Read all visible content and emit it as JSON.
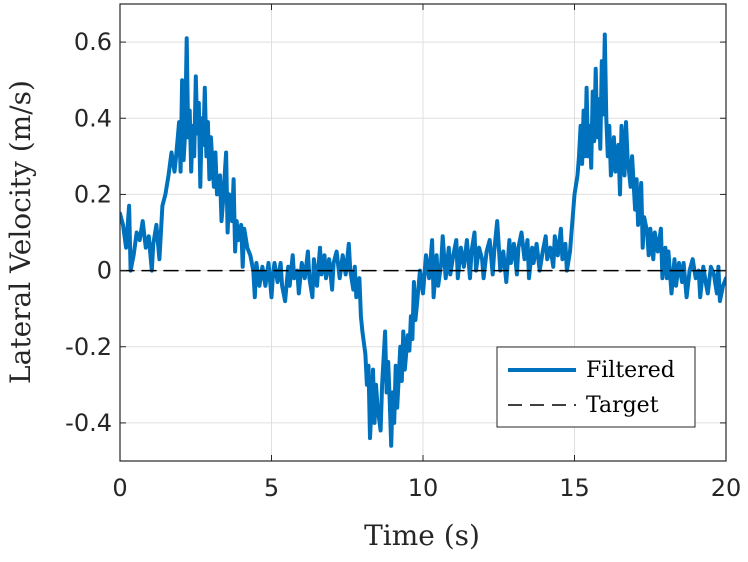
{
  "chart_data": {
    "type": "line",
    "xlabel": "Time (s)",
    "ylabel": "Lateral Velocity (m/s)",
    "xlim": [
      0,
      20
    ],
    "ylim": [
      -0.5,
      0.7
    ],
    "xticks": [
      0,
      5,
      10,
      15,
      20
    ],
    "xtick_labels": [
      "0",
      "5",
      "10",
      "15",
      "20"
    ],
    "yticks": [
      -0.4,
      -0.2,
      0,
      0.2,
      0.4,
      0.6
    ],
    "ytick_labels": [
      "-0.4",
      "-0.2",
      "0",
      "0.2",
      "0.4",
      "0.6"
    ],
    "grid": true,
    "legend_position": "bottom-right",
    "series": [
      {
        "name": "Filtered",
        "color": "#0072BD",
        "style": "solid",
        "points": [
          [
            0.0,
            0.15
          ],
          [
            0.1,
            0.12
          ],
          [
            0.2,
            0.06
          ],
          [
            0.3,
            0.17
          ],
          [
            0.35,
            0.0
          ],
          [
            0.45,
            0.04
          ],
          [
            0.55,
            0.1
          ],
          [
            0.65,
            0.08
          ],
          [
            0.75,
            0.13
          ],
          [
            0.85,
            0.06
          ],
          [
            0.95,
            0.09
          ],
          [
            1.05,
            0.0
          ],
          [
            1.1,
            0.07
          ],
          [
            1.2,
            0.12
          ],
          [
            1.3,
            0.03
          ],
          [
            1.4,
            0.17
          ],
          [
            1.5,
            0.2
          ],
          [
            1.6,
            0.25
          ],
          [
            1.7,
            0.31
          ],
          [
            1.8,
            0.26
          ],
          [
            1.85,
            0.3
          ],
          [
            1.95,
            0.39
          ],
          [
            2.0,
            0.26
          ],
          [
            2.05,
            0.5
          ],
          [
            2.1,
            0.29
          ],
          [
            2.15,
            0.36
          ],
          [
            2.2,
            0.61
          ],
          [
            2.25,
            0.35
          ],
          [
            2.3,
            0.42
          ],
          [
            2.35,
            0.26
          ],
          [
            2.4,
            0.38
          ],
          [
            2.45,
            0.3
          ],
          [
            2.5,
            0.51
          ],
          [
            2.55,
            0.36
          ],
          [
            2.6,
            0.44
          ],
          [
            2.65,
            0.22
          ],
          [
            2.7,
            0.4
          ],
          [
            2.75,
            0.33
          ],
          [
            2.8,
            0.48
          ],
          [
            2.85,
            0.3
          ],
          [
            2.9,
            0.39
          ],
          [
            2.95,
            0.24
          ],
          [
            3.0,
            0.35
          ],
          [
            3.1,
            0.22
          ],
          [
            3.15,
            0.31
          ],
          [
            3.2,
            0.2
          ],
          [
            3.3,
            0.25
          ],
          [
            3.35,
            0.13
          ],
          [
            3.4,
            0.18
          ],
          [
            3.5,
            0.31
          ],
          [
            3.55,
            0.1
          ],
          [
            3.6,
            0.2
          ],
          [
            3.7,
            0.13
          ],
          [
            3.75,
            0.24
          ],
          [
            3.8,
            0.05
          ],
          [
            3.85,
            0.13
          ],
          [
            3.9,
            0.08
          ],
          [
            4.0,
            0.12
          ],
          [
            4.05,
            0.01
          ],
          [
            4.1,
            0.11
          ],
          [
            4.2,
            0.06
          ],
          [
            4.3,
            0.04
          ],
          [
            4.4,
            0.0
          ],
          [
            4.45,
            -0.07
          ],
          [
            4.5,
            0.02
          ],
          [
            4.6,
            -0.04
          ],
          [
            4.7,
            0.01
          ],
          [
            4.8,
            -0.04
          ],
          [
            4.9,
            0.02
          ],
          [
            5.0,
            -0.07
          ],
          [
            5.05,
            -0.01
          ],
          [
            5.1,
            0.02
          ],
          [
            5.2,
            -0.03
          ],
          [
            5.3,
            0.02
          ],
          [
            5.35,
            -0.04
          ],
          [
            5.45,
            -0.08
          ],
          [
            5.55,
            0.01
          ],
          [
            5.6,
            -0.04
          ],
          [
            5.7,
            0.04
          ],
          [
            5.75,
            -0.02
          ],
          [
            5.85,
            0.0
          ],
          [
            5.9,
            -0.06
          ],
          [
            6.0,
            0.02
          ],
          [
            6.1,
            -0.02
          ],
          [
            6.2,
            0.05
          ],
          [
            6.25,
            -0.02
          ],
          [
            6.35,
            -0.07
          ],
          [
            6.4,
            0.03
          ],
          [
            6.5,
            -0.04
          ],
          [
            6.6,
            0.06
          ],
          [
            6.65,
            -0.01
          ],
          [
            6.75,
            0.04
          ],
          [
            6.8,
            -0.02
          ],
          [
            6.9,
            0.03
          ],
          [
            7.0,
            -0.05
          ],
          [
            7.05,
            0.02
          ],
          [
            7.15,
            0.05
          ],
          [
            7.25,
            -0.02
          ],
          [
            7.35,
            0.04
          ],
          [
            7.45,
            -0.01
          ],
          [
            7.55,
            0.07
          ],
          [
            7.6,
            0.0
          ],
          [
            7.7,
            -0.05
          ],
          [
            7.75,
            0.01
          ],
          [
            7.8,
            -0.07
          ],
          [
            7.9,
            -0.02
          ],
          [
            7.95,
            -0.12
          ],
          [
            8.0,
            -0.16
          ],
          [
            8.1,
            -0.22
          ],
          [
            8.15,
            -0.3
          ],
          [
            8.2,
            -0.25
          ],
          [
            8.25,
            -0.44
          ],
          [
            8.3,
            -0.36
          ],
          [
            8.35,
            -0.26
          ],
          [
            8.4,
            -0.4
          ],
          [
            8.45,
            -0.3
          ],
          [
            8.5,
            -0.36
          ],
          [
            8.6,
            -0.42
          ],
          [
            8.65,
            -0.3
          ],
          [
            8.75,
            -0.16
          ],
          [
            8.8,
            -0.32
          ],
          [
            8.85,
            -0.24
          ],
          [
            8.9,
            -0.34
          ],
          [
            8.95,
            -0.46
          ],
          [
            9.0,
            -0.32
          ],
          [
            9.05,
            -0.4
          ],
          [
            9.1,
            -0.25
          ],
          [
            9.15,
            -0.36
          ],
          [
            9.25,
            -0.2
          ],
          [
            9.3,
            -0.29
          ],
          [
            9.35,
            -0.16
          ],
          [
            9.4,
            -0.26
          ],
          [
            9.5,
            -0.17
          ],
          [
            9.55,
            -0.21
          ],
          [
            9.6,
            -0.12
          ],
          [
            9.65,
            -0.18
          ],
          [
            9.7,
            -0.03
          ],
          [
            9.75,
            -0.13
          ],
          [
            9.8,
            -0.09
          ],
          [
            9.9,
            0.0
          ],
          [
            10.0,
            -0.06
          ],
          [
            10.1,
            0.04
          ],
          [
            10.2,
            -0.02
          ],
          [
            10.3,
            0.08
          ],
          [
            10.35,
            -0.07
          ],
          [
            10.45,
            0.04
          ],
          [
            10.5,
            -0.04
          ],
          [
            10.6,
            0.02
          ],
          [
            10.65,
            0.09
          ],
          [
            10.75,
            -0.02
          ],
          [
            10.85,
            0.06
          ],
          [
            10.9,
            -0.01
          ],
          [
            11.0,
            0.04
          ],
          [
            11.1,
            0.08
          ],
          [
            11.15,
            -0.02
          ],
          [
            11.25,
            0.06
          ],
          [
            11.35,
            0.01
          ],
          [
            11.45,
            0.08
          ],
          [
            11.55,
            -0.02
          ],
          [
            11.6,
            0.05
          ],
          [
            11.7,
            0.1
          ],
          [
            11.75,
            0.0
          ],
          [
            11.85,
            0.06
          ],
          [
            11.95,
            0.03
          ],
          [
            12.0,
            -0.02
          ],
          [
            12.1,
            0.05
          ],
          [
            12.2,
            0.08
          ],
          [
            12.3,
            -0.01
          ],
          [
            12.35,
            0.05
          ],
          [
            12.45,
            0.13
          ],
          [
            12.55,
            0.0
          ],
          [
            12.65,
            0.05
          ],
          [
            12.75,
            -0.03
          ],
          [
            12.85,
            0.08
          ],
          [
            12.9,
            0.02
          ],
          [
            13.0,
            0.07
          ],
          [
            13.1,
            -0.01
          ],
          [
            13.15,
            0.06
          ],
          [
            13.25,
            0.1
          ],
          [
            13.35,
            0.03
          ],
          [
            13.45,
            0.08
          ],
          [
            13.5,
            -0.02
          ],
          [
            13.6,
            0.06
          ],
          [
            13.65,
            0.02
          ],
          [
            13.75,
            0.07
          ],
          [
            13.85,
            0.0
          ],
          [
            13.95,
            0.05
          ],
          [
            14.05,
            0.09
          ],
          [
            14.1,
            0.03
          ],
          [
            14.2,
            0.06
          ],
          [
            14.3,
            0.01
          ],
          [
            14.35,
            0.09
          ],
          [
            14.45,
            0.04
          ],
          [
            14.55,
            0.11
          ],
          [
            14.6,
            0.03
          ],
          [
            14.7,
            0.07
          ],
          [
            14.75,
            0.0
          ],
          [
            14.85,
            0.05
          ],
          [
            14.95,
            0.15
          ],
          [
            15.0,
            0.2
          ],
          [
            15.1,
            0.25
          ],
          [
            15.15,
            0.3
          ],
          [
            15.2,
            0.38
          ],
          [
            15.25,
            0.28
          ],
          [
            15.3,
            0.42
          ],
          [
            15.35,
            0.3
          ],
          [
            15.4,
            0.48
          ],
          [
            15.45,
            0.3
          ],
          [
            15.5,
            0.38
          ],
          [
            15.55,
            0.27
          ],
          [
            15.6,
            0.47
          ],
          [
            15.65,
            0.34
          ],
          [
            15.7,
            0.53
          ],
          [
            15.75,
            0.35
          ],
          [
            15.8,
            0.45
          ],
          [
            15.85,
            0.32
          ],
          [
            15.9,
            0.55
          ],
          [
            15.95,
            0.41
          ],
          [
            16.0,
            0.62
          ],
          [
            16.05,
            0.4
          ],
          [
            16.1,
            0.3
          ],
          [
            16.15,
            0.38
          ],
          [
            16.2,
            0.25
          ],
          [
            16.3,
            0.35
          ],
          [
            16.35,
            0.26
          ],
          [
            16.45,
            0.33
          ],
          [
            16.5,
            0.2
          ],
          [
            16.55,
            0.38
          ],
          [
            16.65,
            0.25
          ],
          [
            16.7,
            0.39
          ],
          [
            16.75,
            0.3
          ],
          [
            16.85,
            0.22
          ],
          [
            16.9,
            0.3
          ],
          [
            17.0,
            0.16
          ],
          [
            17.05,
            0.24
          ],
          [
            17.1,
            0.12
          ],
          [
            17.2,
            0.23
          ],
          [
            17.25,
            0.06
          ],
          [
            17.3,
            0.14
          ],
          [
            17.4,
            0.1
          ],
          [
            17.45,
            0.04
          ],
          [
            17.5,
            0.11
          ],
          [
            17.6,
            0.03
          ],
          [
            17.65,
            0.1
          ],
          [
            17.75,
            0.05
          ],
          [
            17.85,
            0.11
          ],
          [
            17.9,
            -0.02
          ],
          [
            18.0,
            0.06
          ],
          [
            18.05,
            -0.02
          ],
          [
            18.1,
            0.05
          ],
          [
            18.2,
            -0.06
          ],
          [
            18.3,
            0.03
          ],
          [
            18.35,
            -0.04
          ],
          [
            18.45,
            0.02
          ],
          [
            18.55,
            -0.03
          ],
          [
            18.6,
            0.02
          ],
          [
            18.7,
            -0.07
          ],
          [
            18.8,
            0.0
          ],
          [
            18.9,
            0.03
          ],
          [
            19.0,
            -0.02
          ],
          [
            19.1,
            0.0
          ],
          [
            19.15,
            -0.07
          ],
          [
            19.25,
            0.01
          ],
          [
            19.35,
            -0.04
          ],
          [
            19.4,
            -0.06
          ],
          [
            19.5,
            0.01
          ],
          [
            19.6,
            -0.01
          ],
          [
            19.7,
            -0.06
          ],
          [
            19.75,
            0.01
          ],
          [
            19.8,
            -0.08
          ],
          [
            19.9,
            -0.04
          ],
          [
            20.0,
            -0.02
          ]
        ]
      },
      {
        "name": "Target",
        "color": "#000000",
        "style": "dashed",
        "points": [
          [
            0,
            0
          ],
          [
            20,
            0
          ]
        ]
      }
    ]
  }
}
